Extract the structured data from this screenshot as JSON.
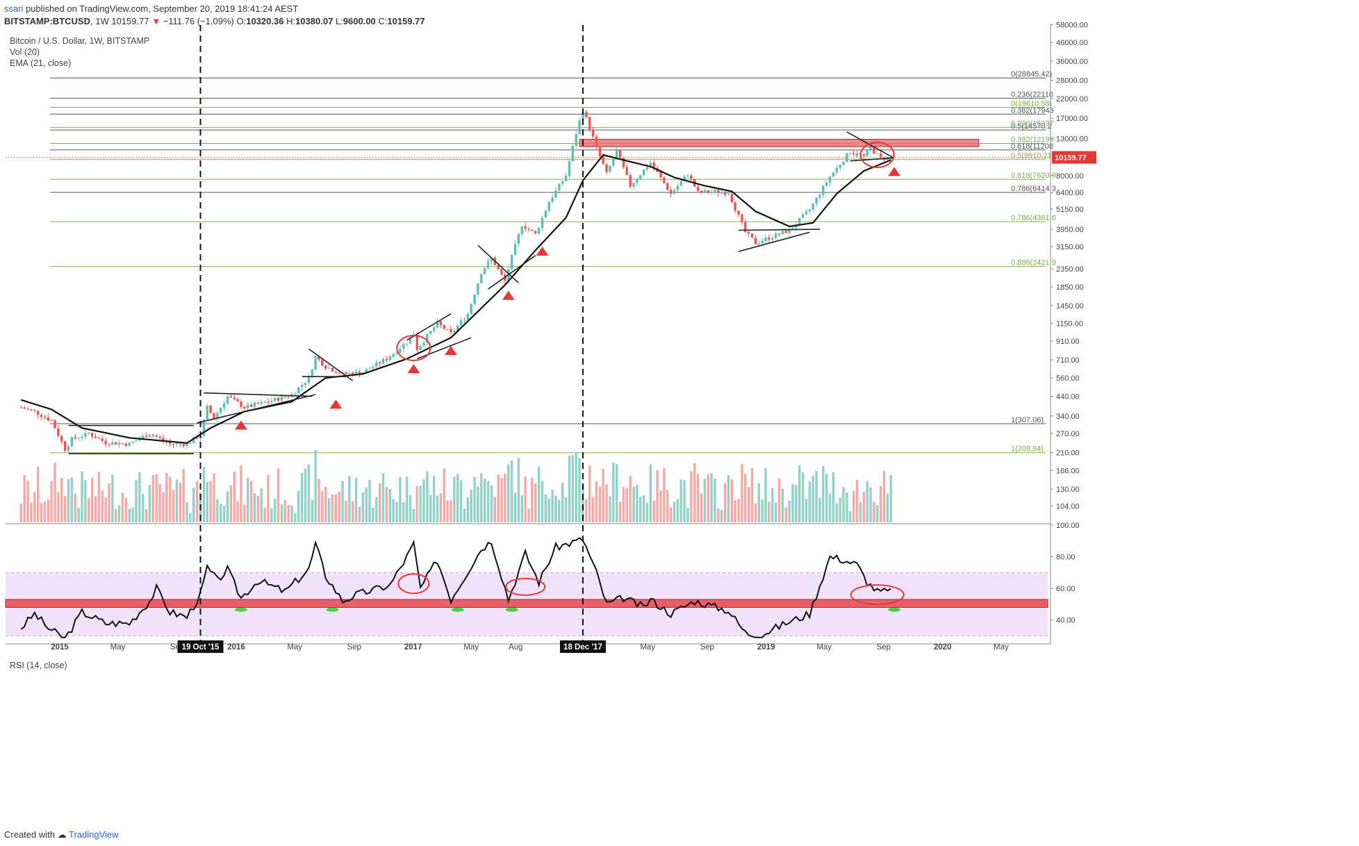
{
  "header": {
    "user": "ssari",
    "published_text": "published on TradingView.com, September 20, 2019 18:41:24 AEST",
    "symbol": "BITSTAMP:BTCUSD",
    "interval": "1W",
    "last": "10159.77",
    "change": "−111.76 (−1.09%)",
    "open_label": "O:",
    "open": "10320.36",
    "high_label": "H:",
    "high": "10380.07",
    "low_label": "L:",
    "low": "9600.00",
    "close_label": "C:",
    "close": "10159.77"
  },
  "legend": {
    "title": "Bitcoin / U.S. Dollar, 1W, BITSTAMP",
    "vol": "Vol (20)",
    "ema": "EMA (21, close)",
    "rsi": "RSI (14, close)"
  },
  "footer": {
    "created_with": "Created with",
    "brand": "TradingView"
  },
  "colors": {
    "up": "#5cbfb0",
    "down": "#ef5350",
    "vol_up": "#92d1c6",
    "vol_down": "#f4a9a6",
    "fib_black": "#555555",
    "fib_green": "#7cb342",
    "resistance_band": "#e57373",
    "rsi_fill": "#f1e2fb",
    "rsi_band": "#e86068",
    "marker": "#e53935",
    "rsi_marker": "#43d14a"
  },
  "chart_data": [
    {
      "type": "candlestick",
      "title": "Bitcoin / U.S. Dollar, 1W, BITSTAMP",
      "y_scale": "log",
      "ylim": [
        84,
        60000
      ],
      "price_ticks": [
        "58000.00",
        "46000.00",
        "36000.00",
        "28000.00",
        "22000.00",
        "17000.00",
        "13000.00",
        "10159.77",
        "8000.00",
        "6400.00",
        "5150.00",
        "3950.00",
        "3150.00",
        "2350.00",
        "1850.00",
        "1450.00",
        "1150.00",
        "910.00",
        "710.00",
        "560.00",
        "440.00",
        "340.00",
        "270.00",
        "210.00",
        "166.00",
        "130.00",
        "104.00"
      ],
      "time_ticks": [
        "2015",
        "May",
        "Sep",
        "19 Oct '15",
        "2016",
        "May",
        "Sep",
        "2017",
        "May",
        "Aug",
        "18 Dec '17",
        "May",
        "Sep",
        "2019",
        "May",
        "Sep",
        "2020",
        "May"
      ],
      "current_price": "10159.77",
      "close_path": [
        [
          "2014-10-13",
          380
        ],
        [
          "2014-11-10",
          360
        ],
        [
          "2014-12-15",
          320
        ],
        [
          "2015-01-12",
          220
        ],
        [
          "2015-01-26",
          250
        ],
        [
          "2015-03-02",
          270
        ],
        [
          "2015-04-06",
          240
        ],
        [
          "2015-05-25",
          235
        ],
        [
          "2015-07-06",
          270
        ],
        [
          "2015-08-17",
          235
        ],
        [
          "2015-09-21",
          235
        ],
        [
          "2015-10-19",
          265
        ],
        [
          "2015-11-02",
          380
        ],
        [
          "2015-11-16",
          330
        ],
        [
          "2015-12-14",
          440
        ],
        [
          "2016-01-18",
          380
        ],
        [
          "2016-03-07",
          410
        ],
        [
          "2016-04-25",
          450
        ],
        [
          "2016-05-30",
          560
        ],
        [
          "2016-06-13",
          740
        ],
        [
          "2016-07-04",
          650
        ],
        [
          "2016-08-08",
          590
        ],
        [
          "2016-09-19",
          605
        ],
        [
          "2016-11-07",
          720
        ],
        [
          "2016-12-19",
          900
        ],
        [
          "2017-01-02",
          1000
        ],
        [
          "2017-01-09",
          820
        ],
        [
          "2017-02-20",
          1150
        ],
        [
          "2017-03-20",
          1000
        ],
        [
          "2017-04-24",
          1300
        ],
        [
          "2017-05-22",
          2250
        ],
        [
          "2017-06-12",
          2700
        ],
        [
          "2017-07-10",
          2000
        ],
        [
          "2017-07-24",
          2750
        ],
        [
          "2017-08-14",
          4200
        ],
        [
          "2017-09-11",
          3700
        ],
        [
          "2017-10-09",
          5700
        ],
        [
          "2017-11-13",
          8000
        ],
        [
          "2017-12-04",
          14000
        ],
        [
          "2017-12-18",
          19000
        ],
        [
          "2018-01-01",
          15000
        ],
        [
          "2018-01-15",
          11500
        ],
        [
          "2018-02-05",
          8200
        ],
        [
          "2018-02-26",
          11000
        ],
        [
          "2018-03-26",
          7000
        ],
        [
          "2018-05-07",
          9500
        ],
        [
          "2018-06-18",
          6300
        ],
        [
          "2018-07-23",
          8200
        ],
        [
          "2018-08-13",
          6400
        ],
        [
          "2018-09-17",
          6500
        ],
        [
          "2018-10-15",
          6400
        ],
        [
          "2018-11-19",
          3800
        ],
        [
          "2018-12-10",
          3300
        ],
        [
          "2019-01-14",
          3600
        ],
        [
          "2019-02-18",
          3900
        ],
        [
          "2019-04-01",
          5100
        ],
        [
          "2019-05-13",
          7900
        ],
        [
          "2019-06-24",
          11000
        ],
        [
          "2019-07-22",
          10300
        ],
        [
          "2019-08-05",
          11500
        ],
        [
          "2019-08-26",
          10000
        ],
        [
          "2019-09-16",
          10159.77
        ]
      ],
      "ema_path": [
        [
          "2014-10-13",
          420
        ],
        [
          "2014-12-15",
          370
        ],
        [
          "2015-02-16",
          290
        ],
        [
          "2015-05-25",
          255
        ],
        [
          "2015-09-21",
          238
        ],
        [
          "2015-11-09",
          290
        ],
        [
          "2016-01-18",
          360
        ],
        [
          "2016-04-25",
          410
        ],
        [
          "2016-07-04",
          560
        ],
        [
          "2016-09-19",
          590
        ],
        [
          "2016-12-19",
          720
        ],
        [
          "2017-03-20",
          950
        ],
        [
          "2017-05-22",
          1400
        ],
        [
          "2017-07-10",
          1900
        ],
        [
          "2017-09-11",
          3000
        ],
        [
          "2017-11-13",
          4600
        ],
        [
          "2017-12-18",
          7500
        ],
        [
          "2018-01-29",
          10500
        ],
        [
          "2018-03-26",
          9600
        ],
        [
          "2018-05-07",
          9000
        ],
        [
          "2018-06-25",
          7800
        ],
        [
          "2018-08-27",
          7000
        ],
        [
          "2018-10-22",
          6500
        ],
        [
          "2018-12-10",
          5000
        ],
        [
          "2019-02-18",
          4100
        ],
        [
          "2019-04-08",
          4300
        ],
        [
          "2019-05-27",
          6300
        ],
        [
          "2019-07-22",
          8500
        ],
        [
          "2019-09-16",
          9800
        ]
      ],
      "horizontal_levels": [
        {
          "label": "0(28845.42)",
          "price": 28845.42,
          "set": "black"
        },
        {
          "label": "0.236(22110",
          "price": 22110,
          "set": "black"
        },
        {
          "label": "0(19610.58)",
          "price": 19610.58,
          "set": "green"
        },
        {
          "label": "0.382(17943",
          "price": 17943,
          "set": "black"
        },
        {
          "label": "0.5(14570.2",
          "price": 14570.2,
          "set": "black"
        },
        {
          "label": "0.236(15037",
          "price": 15037,
          "set": "green"
        },
        {
          "label": "0.382(12199",
          "price": 12199,
          "set": "green"
        },
        {
          "label": "0.618(11208",
          "price": 11208,
          "set": "black"
        },
        {
          "label": "0.5(9910.21)",
          "price": 9910.21,
          "set": "green"
        },
        {
          "label": "0.618(7620.9",
          "price": 7620.9,
          "set": "green"
        },
        {
          "label": "0.786(6414.3",
          "price": 6414.3,
          "set": "black"
        },
        {
          "label": "0.786(4361.6",
          "price": 4361.6,
          "set": "green"
        },
        {
          "label": "0.886(2421.9",
          "price": 2421.9,
          "set": "green"
        },
        {
          "label": "1(307.06)",
          "price": 307.06,
          "set": "black"
        },
        {
          "label": "1(209.84)",
          "price": 209.84,
          "set": "green"
        }
      ],
      "resistance_zone": {
        "low": 11700,
        "high": 12900,
        "from": "2017-12-11",
        "to": "2020-03-16"
      },
      "vertical_markers": [
        {
          "label": "19 Oct '15",
          "date": "2015-10-19"
        },
        {
          "label": "18 Dec '17",
          "date": "2017-12-18"
        }
      ]
    },
    {
      "type": "line",
      "title": "RSI (14, close)",
      "ylim": [
        28,
        100
      ],
      "y_ticks": [
        "100.00",
        "80.00",
        "60.00",
        "40.00"
      ],
      "overbought": 70,
      "oversold": 30,
      "support_band": [
        48,
        53
      ],
      "values_path": [
        [
          "2014-10-13",
          35
        ],
        [
          "2014-11-10",
          44
        ],
        [
          "2014-12-08",
          35
        ],
        [
          "2015-01-12",
          28
        ],
        [
          "2015-02-16",
          45
        ],
        [
          "2015-04-06",
          38
        ],
        [
          "2015-05-25",
          38
        ],
        [
          "2015-07-06",
          52
        ],
        [
          "2015-07-20",
          60
        ],
        [
          "2015-08-17",
          45
        ],
        [
          "2015-09-21",
          42
        ],
        [
          "2015-10-19",
          56
        ],
        [
          "2015-11-02",
          73
        ],
        [
          "2015-11-23",
          65
        ],
        [
          "2015-12-14",
          72
        ],
        [
          "2016-01-11",
          54
        ],
        [
          "2016-02-15",
          65
        ],
        [
          "2016-04-11",
          58
        ],
        [
          "2016-05-30",
          72
        ],
        [
          "2016-06-13",
          88
        ],
        [
          "2016-07-04",
          68
        ],
        [
          "2016-08-08",
          52
        ],
        [
          "2016-09-05",
          56
        ],
        [
          "2016-11-14",
          62
        ],
        [
          "2016-12-19",
          80
        ],
        [
          "2017-01-02",
          88
        ],
        [
          "2017-01-16",
          60
        ],
        [
          "2017-02-20",
          78
        ],
        [
          "2017-03-20",
          53
        ],
        [
          "2017-05-22",
          85
        ],
        [
          "2017-06-12",
          90
        ],
        [
          "2017-07-17",
          53
        ],
        [
          "2017-08-21",
          82
        ],
        [
          "2017-09-18",
          64
        ],
        [
          "2017-10-23",
          86
        ],
        [
          "2017-12-18",
          91
        ],
        [
          "2018-01-15",
          70
        ],
        [
          "2018-02-05",
          50
        ],
        [
          "2018-03-12",
          54
        ],
        [
          "2018-04-23",
          48
        ],
        [
          "2018-05-07",
          53
        ],
        [
          "2018-06-18",
          44
        ],
        [
          "2018-08-06",
          52
        ],
        [
          "2018-10-15",
          46
        ],
        [
          "2018-11-19",
          32
        ],
        [
          "2018-12-17",
          30
        ],
        [
          "2019-02-11",
          38
        ],
        [
          "2019-04-01",
          44
        ],
        [
          "2019-05-13",
          80
        ],
        [
          "2019-06-10",
          78
        ],
        [
          "2019-07-08",
          75
        ],
        [
          "2019-07-29",
          64
        ],
        [
          "2019-08-19",
          58
        ],
        [
          "2019-09-16",
          58
        ]
      ]
    }
  ]
}
